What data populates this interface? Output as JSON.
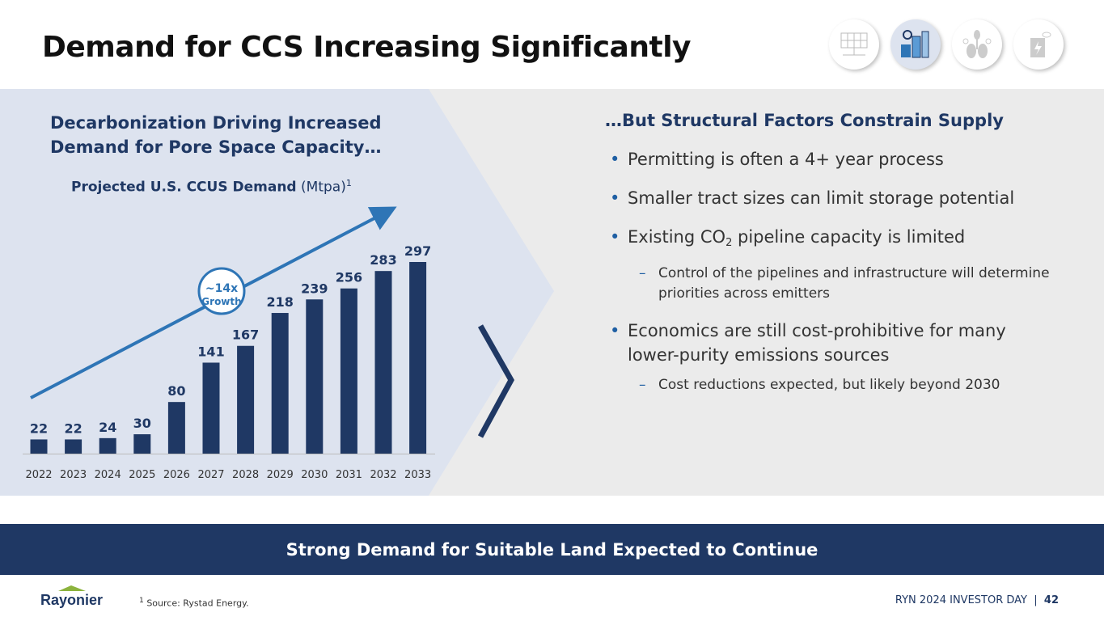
{
  "title": "Demand for CCS Increasing Significantly",
  "header_icons": [
    "solar-panel-icon",
    "industrial-facility-icon",
    "plant-lungs-icon",
    "battery-leaf-icon"
  ],
  "left": {
    "heading_line1": "Decarbonization Driving Increased",
    "heading_line2": "Demand for Pore Space Capacity…"
  },
  "chart_data": {
    "type": "bar",
    "title": "Projected U.S. CCUS Demand",
    "title_unit": "(Mtpa)",
    "title_footnote": "1",
    "categories": [
      "2022",
      "2023",
      "2024",
      "2025",
      "2026",
      "2027",
      "2028",
      "2029",
      "2030",
      "2031",
      "2032",
      "2033"
    ],
    "values": [
      22,
      22,
      24,
      30,
      80,
      141,
      167,
      218,
      239,
      256,
      283,
      297
    ],
    "ylim": [
      0,
      297
    ],
    "xlabel": "",
    "ylabel": "",
    "grid": false,
    "annotation": {
      "line1": "~14x",
      "line2": "Growth"
    },
    "color": "#1f3864",
    "arrow_color": "#2e75b6"
  },
  "right": {
    "heading": "…But Structural Factors Constrain Supply",
    "b1": "Permitting is often a 4+ year process",
    "b2": "Smaller tract sizes can limit storage potential",
    "b3_pre": "Existing CO",
    "b3_sub": "2",
    "b3_post": " pipeline capacity is limited",
    "b3_sub1": "Control of the pipelines and infrastructure will determine priorities across emitters",
    "b4": "Economics are still cost-prohibitive for many lower-purity emissions sources",
    "b4_sub1": "Cost reductions expected, but likely beyond 2030"
  },
  "banner": "Strong Demand for Suitable Land Expected to Continue",
  "logo": "Rayonier",
  "source_mark": "1",
  "source": "Source: Rystad Energy.",
  "footer_text": "RYN 2024 INVESTOR DAY  |  ",
  "page": "42"
}
